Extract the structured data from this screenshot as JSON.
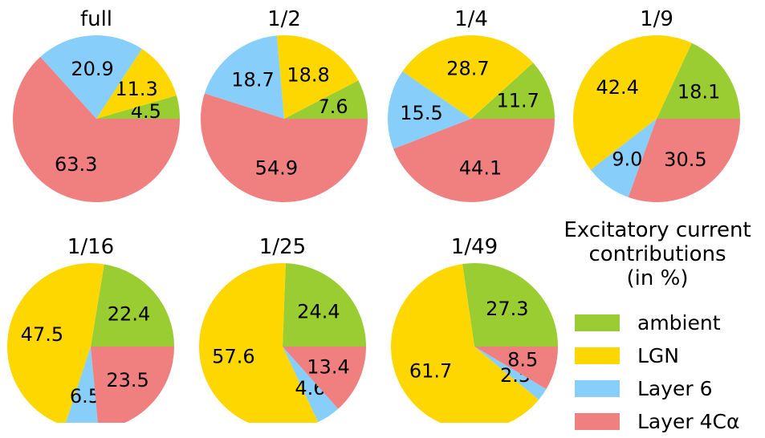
{
  "chart_data": {
    "type": "pie",
    "series_names": [
      "ambient",
      "LGN",
      "Layer 6",
      "Layer 4Cα"
    ],
    "colors": {
      "ambient": "#9acd32",
      "LGN": "#ffd700",
      "Layer 6": "#87cefa",
      "Layer 4Cα": "#f08080"
    },
    "charts": [
      {
        "title": "full",
        "values": [
          4.5,
          11.3,
          20.9,
          63.3
        ],
        "labels": [
          "4.5",
          "11.3",
          "20.9",
          "63.3"
        ]
      },
      {
        "title": "1/2",
        "values": [
          7.6,
          18.8,
          18.7,
          54.9
        ],
        "labels": [
          "7.6",
          "18.8",
          "18.7",
          "54.9"
        ]
      },
      {
        "title": "1/4",
        "values": [
          11.7,
          28.7,
          15.5,
          44.1
        ],
        "labels": [
          "11.7",
          "28.7",
          "15.5",
          "44.1"
        ]
      },
      {
        "title": "1/9",
        "values": [
          18.1,
          42.4,
          9.0,
          30.5
        ],
        "labels": [
          "18.1",
          "42.4",
          "9.0",
          "30.5"
        ]
      },
      {
        "title": "1/16",
        "values": [
          22.4,
          47.5,
          6.5,
          23.5
        ],
        "labels": [
          "22.4",
          "47.5",
          "6.5",
          "23.5"
        ]
      },
      {
        "title": "1/25",
        "values": [
          24.4,
          57.6,
          4.6,
          13.4
        ],
        "labels": [
          "24.4",
          "57.6",
          "4.6",
          "13.4"
        ]
      },
      {
        "title": "1/49",
        "values": [
          27.3,
          61.7,
          2.5,
          8.5
        ],
        "labels": [
          "27.3",
          "61.7",
          "2.5",
          "8.5"
        ]
      }
    ],
    "legend": {
      "title_lines": [
        "Excitatory current",
        "contributions",
        "(in %)"
      ],
      "entries": [
        "ambient",
        "LGN",
        "Layer 6",
        "Layer 4Cα"
      ],
      "placement": "bottom-right"
    }
  }
}
